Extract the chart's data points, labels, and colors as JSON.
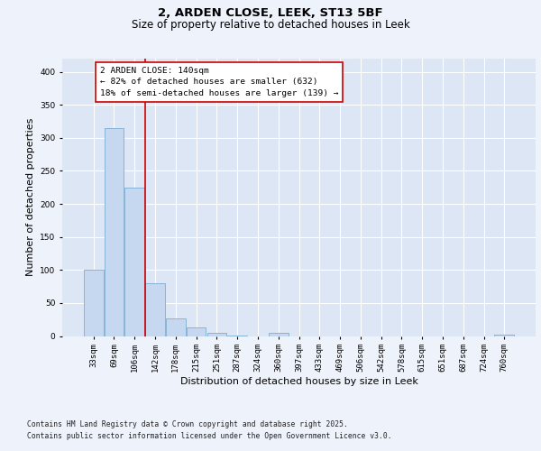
{
  "title_line1": "2, ARDEN CLOSE, LEEK, ST13 5BF",
  "title_line2": "Size of property relative to detached houses in Leek",
  "xlabel": "Distribution of detached houses by size in Leek",
  "ylabel": "Number of detached properties",
  "categories": [
    "33sqm",
    "69sqm",
    "106sqm",
    "142sqm",
    "178sqm",
    "215sqm",
    "251sqm",
    "287sqm",
    "324sqm",
    "360sqm",
    "397sqm",
    "433sqm",
    "469sqm",
    "506sqm",
    "542sqm",
    "578sqm",
    "615sqm",
    "651sqm",
    "687sqm",
    "724sqm",
    "760sqm"
  ],
  "values": [
    100,
    315,
    225,
    80,
    27,
    13,
    5,
    1,
    0,
    5,
    0,
    0,
    0,
    0,
    0,
    0,
    0,
    0,
    0,
    0,
    2
  ],
  "bar_color": "#c5d8f0",
  "bar_edge_color": "#7aaed4",
  "vline_color": "#cc0000",
  "annotation_text": "2 ARDEN CLOSE: 140sqm\n← 82% of detached houses are smaller (632)\n18% of semi-detached houses are larger (139) →",
  "annotation_box_color": "#cc0000",
  "ylim": [
    0,
    420
  ],
  "yticks": [
    0,
    50,
    100,
    150,
    200,
    250,
    300,
    350,
    400
  ],
  "background_color": "#eef2fb",
  "plot_bg_color": "#dce6f5",
  "grid_color": "#ffffff",
  "footer_line1": "Contains HM Land Registry data © Crown copyright and database right 2025.",
  "footer_line2": "Contains public sector information licensed under the Open Government Licence v3.0.",
  "title_fontsize": 9.5,
  "subtitle_fontsize": 8.5,
  "tick_fontsize": 6.5,
  "label_fontsize": 8,
  "annotation_fontsize": 6.8,
  "footer_fontsize": 5.8
}
